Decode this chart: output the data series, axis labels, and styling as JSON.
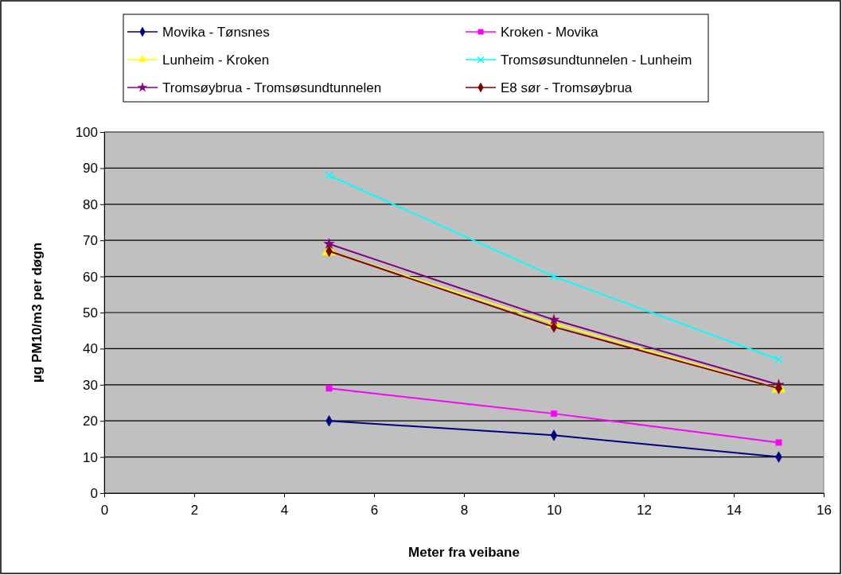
{
  "chart_data": {
    "type": "line",
    "xlabel": "Meter fra veibane",
    "ylabel": "µg PM10/m3 per døgn",
    "x": [
      5,
      10,
      15
    ],
    "xlim": [
      0,
      16
    ],
    "xticks": [
      0,
      2,
      4,
      6,
      8,
      10,
      12,
      14,
      16
    ],
    "ylim": [
      0,
      100
    ],
    "yticks": [
      0,
      10,
      20,
      30,
      40,
      50,
      60,
      70,
      80,
      90,
      100
    ],
    "grid": "y",
    "legend": "top",
    "series": [
      {
        "name": "Movika - Tønsnes",
        "color": "#000080",
        "marker": "diamond",
        "values": [
          20,
          16,
          10
        ]
      },
      {
        "name": "Kroken - Movika",
        "color": "#ff00ff",
        "marker": "square",
        "values": [
          29,
          22,
          14
        ]
      },
      {
        "name": "Lunheim - Kroken",
        "color": "#ffff00",
        "marker": "triangle",
        "values": [
          67,
          47,
          29
        ]
      },
      {
        "name": "Tromsøsundtunnelen - Lunheim",
        "color": "#00ffff",
        "marker": "cross",
        "values": [
          88,
          60,
          37
        ]
      },
      {
        "name": "Tromsøybrua - Tromsøsundtunnelen",
        "color": "#800080",
        "marker": "star",
        "values": [
          69,
          48,
          30
        ]
      },
      {
        "name": "E8 sør - Tromsøybrua",
        "color": "#800000",
        "marker": "diamond",
        "values": [
          67,
          46,
          29
        ]
      }
    ]
  }
}
